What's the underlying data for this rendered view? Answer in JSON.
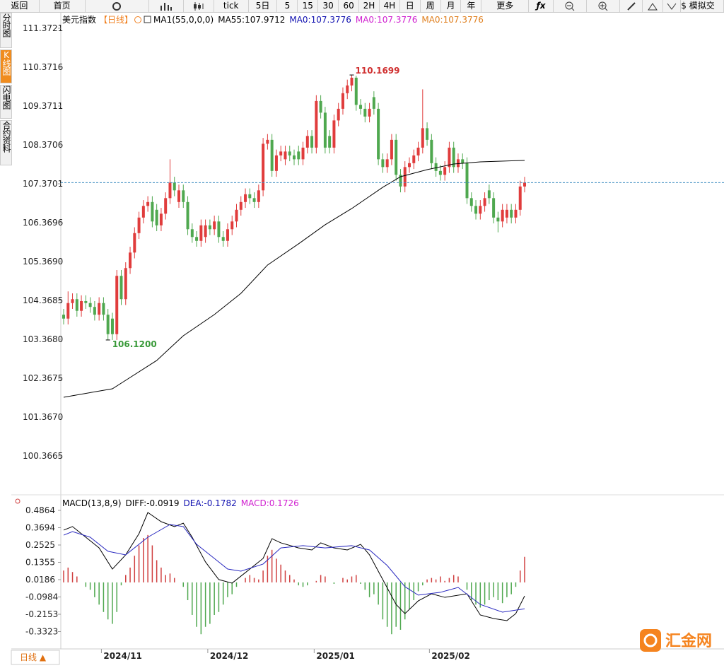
{
  "toolbar": {
    "back": "返回",
    "home": "首页",
    "tick": "tick",
    "periods": [
      "5日",
      "5",
      "15",
      "30",
      "60",
      "2H",
      "4H",
      "日",
      "周",
      "月",
      "年"
    ],
    "more": "更多",
    "fx": "ƒx",
    "sim": "$ 模拟交"
  },
  "side_tabs": [
    "分时图",
    "K线图",
    "闪电图",
    "合约资料"
  ],
  "chart_data": [
    {
      "type": "candlestick",
      "title": "美元指数",
      "period": "【日线】",
      "legend": [
        {
          "text": "MA1(55,0,0,0)",
          "color": "#000000"
        },
        {
          "text": "MA55:107.9712",
          "color": "#000000"
        },
        {
          "text": "MA0:107.3776",
          "color": "#1010b0"
        },
        {
          "text": "MA0:107.3776",
          "color": "#d020d0"
        },
        {
          "text": "MA0:107.3776",
          "color": "#e08020"
        }
      ],
      "categories": [
        null,
        null,
        null,
        null,
        null,
        null,
        null,
        null,
        null,
        "2024/11",
        null,
        null,
        null,
        null,
        null,
        null,
        null,
        null,
        null,
        null,
        null,
        null,
        null,
        null,
        null,
        null,
        null,
        null,
        null,
        null,
        null,
        null,
        null,
        "2024/12",
        null,
        null,
        null,
        null,
        null,
        null,
        null,
        null,
        null,
        null,
        null,
        null,
        null,
        null,
        null,
        null,
        null,
        null,
        null,
        null,
        null,
        null,
        null,
        "2025/01",
        null,
        null,
        null,
        null,
        null,
        null,
        null,
        null,
        null,
        null,
        null,
        null,
        null,
        null,
        null,
        null,
        null,
        null,
        null,
        null,
        null,
        null,
        null,
        null,
        null,
        "2025/02",
        null,
        null,
        null,
        null,
        null,
        null,
        null,
        null,
        null,
        null,
        null,
        null,
        null,
        null,
        null,
        null,
        null,
        null,
        null,
        null,
        null
      ],
      "open": [
        104.0,
        103.9,
        104.3,
        104.4,
        104.1,
        104.35,
        104.3,
        104.2,
        104.0,
        104.3,
        104.0,
        103.9,
        103.5,
        105.0,
        104.4,
        105.2,
        105.6,
        106.1,
        106.5,
        106.8,
        106.9,
        106.7,
        106.3,
        106.6,
        107.0,
        107.4,
        106.9,
        107.2,
        106.9,
        106.2,
        106.0,
        105.9,
        106.0,
        106.3,
        106.2,
        106.4,
        106.0,
        105.9,
        106.2,
        106.4,
        106.7,
        106.9,
        107.1,
        107.0,
        106.9,
        107.2,
        108.4,
        108.5,
        107.7,
        108.1,
        108.0,
        108.2,
        108.1,
        108.2,
        108.0,
        108.3,
        108.6,
        108.3,
        109.5,
        109.2,
        108.6,
        108.3,
        109.0,
        109.3,
        109.7,
        109.9,
        110.1,
        109.4,
        109.3,
        109.1,
        109.6,
        109.3,
        108.0,
        107.8,
        108.0,
        108.5,
        107.6,
        107.3,
        107.8,
        107.9,
        108.1,
        108.3,
        108.8,
        108.5,
        107.9,
        107.7,
        107.6,
        107.8,
        108.3,
        107.8,
        108.0,
        107.9,
        107.0,
        106.8,
        106.6,
        106.8,
        107.2,
        107.0,
        106.5,
        106.4,
        106.5,
        106.7,
        106.5,
        106.7,
        107.3
      ],
      "high": [
        104.15,
        104.6,
        104.55,
        104.55,
        104.5,
        104.5,
        104.45,
        104.35,
        104.45,
        104.45,
        104.15,
        104.05,
        105.15,
        105.15,
        105.35,
        105.75,
        106.25,
        106.65,
        106.95,
        107.05,
        107.05,
        106.85,
        106.75,
        107.15,
        108.0,
        107.55,
        107.35,
        107.35,
        107.05,
        106.35,
        106.15,
        106.45,
        106.45,
        106.45,
        106.55,
        106.55,
        106.15,
        106.35,
        106.55,
        106.85,
        107.05,
        107.25,
        107.25,
        107.15,
        107.35,
        108.55,
        108.65,
        108.65,
        108.25,
        108.35,
        108.35,
        108.35,
        108.25,
        108.35,
        108.45,
        108.75,
        108.75,
        109.65,
        109.65,
        109.35,
        108.75,
        109.15,
        109.45,
        109.85,
        110.05,
        110.1699,
        110.15,
        109.55,
        109.45,
        109.45,
        109.75,
        109.45,
        108.15,
        108.15,
        108.65,
        108.65,
        107.75,
        107.95,
        108.05,
        108.25,
        108.45,
        109.8,
        108.95,
        108.65,
        108.05,
        107.85,
        107.95,
        108.45,
        108.45,
        108.15,
        108.15,
        108.05,
        107.15,
        106.95,
        106.95,
        107.15,
        107.35,
        107.15,
        106.65,
        106.85,
        106.85,
        106.85,
        106.85,
        107.45,
        107.55
      ],
      "low": [
        103.75,
        103.75,
        104.15,
        103.95,
        103.95,
        104.15,
        104.05,
        103.85,
        103.85,
        103.85,
        103.35,
        103.35,
        103.35,
        104.25,
        104.25,
        105.05,
        105.45,
        105.95,
        106.35,
        106.65,
        106.25,
        106.15,
        106.15,
        106.45,
        106.85,
        107.05,
        106.75,
        106.75,
        106.05,
        105.85,
        105.75,
        105.75,
        105.85,
        106.05,
        106.05,
        105.85,
        105.75,
        105.75,
        106.05,
        106.25,
        106.55,
        106.75,
        106.85,
        106.75,
        106.75,
        107.05,
        108.25,
        107.55,
        107.55,
        107.95,
        107.85,
        107.95,
        107.85,
        107.85,
        107.85,
        108.15,
        108.15,
        108.15,
        109.05,
        108.15,
        108.15,
        108.15,
        108.85,
        109.15,
        109.55,
        109.75,
        109.25,
        109.15,
        108.95,
        108.95,
        109.15,
        107.85,
        107.65,
        107.65,
        107.85,
        107.45,
        107.15,
        107.15,
        107.65,
        107.75,
        107.95,
        108.15,
        108.35,
        107.75,
        107.55,
        107.45,
        107.45,
        107.65,
        107.65,
        107.65,
        107.75,
        106.85,
        106.65,
        106.45,
        106.45,
        106.65,
        106.85,
        106.35,
        106.12,
        106.25,
        106.35,
        106.35,
        106.35,
        106.55,
        107.15
      ],
      "close": [
        103.9,
        104.3,
        104.4,
        104.1,
        104.35,
        104.3,
        104.2,
        104.0,
        104.3,
        104.0,
        103.5,
        103.5,
        105.0,
        104.4,
        105.2,
        105.6,
        106.1,
        106.5,
        106.8,
        106.9,
        106.4,
        106.3,
        106.6,
        107.0,
        107.4,
        107.2,
        107.2,
        106.9,
        106.2,
        106.0,
        105.9,
        106.3,
        106.3,
        106.2,
        106.4,
        106.0,
        105.9,
        106.2,
        106.4,
        106.7,
        106.9,
        107.1,
        107.0,
        106.9,
        107.2,
        108.4,
        108.5,
        107.7,
        108.1,
        108.2,
        108.2,
        108.1,
        108.0,
        108.0,
        108.3,
        108.6,
        108.3,
        109.5,
        109.2,
        108.3,
        108.3,
        109.0,
        109.3,
        109.7,
        109.9,
        110.1,
        109.4,
        109.3,
        109.1,
        109.3,
        109.3,
        108.0,
        107.8,
        108.0,
        108.5,
        107.6,
        107.3,
        107.8,
        107.9,
        108.1,
        108.3,
        108.8,
        108.5,
        107.9,
        107.7,
        107.6,
        107.8,
        108.3,
        107.8,
        108.0,
        107.9,
        107.0,
        106.8,
        106.6,
        106.8,
        107.0,
        107.0,
        106.5,
        106.4,
        106.7,
        106.7,
        106.5,
        106.7,
        107.3,
        107.4
      ],
      "up_color": "#e03c3c",
      "down_color": "#4fa84f",
      "ma": {
        "color": "#000000",
        "x": [
          0,
          11,
          14,
          21,
          27,
          34,
          40,
          46,
          53,
          59,
          65,
          72,
          76,
          82,
          88,
          94,
          104
        ],
        "values": [
          101.876,
          102.094,
          102.312,
          102.822,
          103.459,
          104.004,
          104.55,
          105.278,
          105.824,
          106.315,
          106.733,
          107.279,
          107.552,
          107.734,
          107.879,
          107.934,
          107.9712
        ]
      },
      "extreme_labels": {
        "high": "110.1699",
        "low": "106.1200"
      },
      "ylim": [
        99.365,
        111.772
      ],
      "yticks": [
        111.3721,
        110.3716,
        109.3711,
        108.3706,
        107.3701,
        106.3696,
        {
          "value": 105.369,
          "label": "105.3690"
        },
        104.3685,
        {
          "value": 103.368,
          "label": "103.3680"
        },
        102.3675,
        {
          "value": 101.367,
          "label": "101.3670"
        },
        100.3665
      ],
      "grid": false
    },
    {
      "type": "macd",
      "legend": [
        {
          "text": "MACD(13,8,9)",
          "color": "#000000"
        },
        {
          "text": "DIFF:-0.0919",
          "color": "#000000"
        },
        {
          "text": "DEA:-0.1782",
          "color": "#1010b0"
        },
        {
          "text": "MACD:0.1726",
          "color": "#d020d0"
        }
      ],
      "histogram": {
        "up_color": "#d04040",
        "down_color": "#4fa84f",
        "values": [
          0.08,
          0.1,
          0.07,
          0.04,
          0.0,
          -0.03,
          -0.05,
          -0.1,
          -0.15,
          -0.2,
          -0.25,
          -0.28,
          -0.2,
          -0.02,
          0.05,
          0.1,
          0.18,
          0.25,
          0.3,
          0.32,
          0.25,
          0.15,
          0.1,
          0.05,
          0.06,
          0.03,
          0.0,
          -0.03,
          -0.12,
          -0.22,
          -0.3,
          -0.35,
          -0.3,
          -0.28,
          -0.22,
          -0.2,
          -0.15,
          -0.1,
          -0.08,
          -0.03,
          0.0,
          0.03,
          0.05,
          0.03,
          0.02,
          0.08,
          0.18,
          0.22,
          0.16,
          0.12,
          0.08,
          0.05,
          0.02,
          -0.02,
          -0.03,
          -0.02,
          0.0,
          0.01,
          0.05,
          0.04,
          0.0,
          -0.01,
          0.0,
          0.03,
          0.02,
          0.04,
          0.05,
          -0.01,
          -0.05,
          -0.1,
          -0.08,
          -0.15,
          -0.25,
          -0.3,
          -0.35,
          -0.3,
          -0.32,
          -0.25,
          -0.18,
          -0.12,
          -0.06,
          -0.02,
          0.02,
          0.03,
          0.02,
          0.04,
          0.01,
          0.03,
          0.05,
          0.04,
          0.0,
          -0.05,
          -0.12,
          -0.15,
          -0.17,
          -0.15,
          -0.12,
          -0.1,
          -0.12,
          -0.14,
          -0.1,
          -0.08,
          -0.03,
          0.08,
          0.1726
        ]
      },
      "series": [
        {
          "color": "#000000",
          "x": [
            0,
            2,
            4,
            8,
            11,
            14,
            17,
            19,
            22,
            25,
            27,
            29,
            32,
            35,
            38,
            41,
            45,
            47,
            49,
            53,
            56,
            58,
            61,
            64,
            67,
            69,
            72,
            75,
            77,
            80,
            83,
            86,
            91,
            94,
            97,
            100,
            102,
            104
          ],
          "values": [
            0.353,
            0.377,
            0.329,
            0.233,
            0.09,
            0.186,
            0.329,
            0.472,
            0.41,
            0.377,
            0.4,
            0.305,
            0.138,
            0.019,
            -0.005,
            0.066,
            0.162,
            0.295,
            0.267,
            0.233,
            0.219,
            0.267,
            0.233,
            0.219,
            0.257,
            0.186,
            0.019,
            -0.149,
            -0.211,
            -0.125,
            -0.077,
            -0.101,
            -0.077,
            -0.22,
            -0.244,
            -0.258,
            -0.211,
            -0.0919
          ]
        },
        {
          "color": "#2a2ac0",
          "x": [
            0,
            2,
            6,
            10,
            14,
            19,
            24,
            27,
            30,
            34,
            37,
            40,
            45,
            49,
            54,
            59,
            65,
            69,
            73,
            77,
            80,
            85,
            89,
            94,
            99,
            104
          ],
          "values": [
            0.319,
            0.343,
            0.305,
            0.21,
            0.186,
            0.305,
            0.391,
            0.377,
            0.257,
            0.162,
            0.09,
            0.076,
            0.124,
            0.233,
            0.248,
            0.233,
            0.248,
            0.219,
            0.114,
            -0.029,
            -0.086,
            -0.067,
            -0.034,
            -0.149,
            -0.201,
            -0.1782
          ]
        }
      ],
      "ylim": [
        -0.4349,
        0.5198
      ],
      "yticks": [
        0.4864,
        0.3694,
        0.2525,
        0.1355,
        0.0186,
        -0.0984,
        -0.2153,
        -0.3323
      ]
    }
  ],
  "bottom": {
    "period_button": "日线 ▲"
  },
  "logo": "汇金网"
}
